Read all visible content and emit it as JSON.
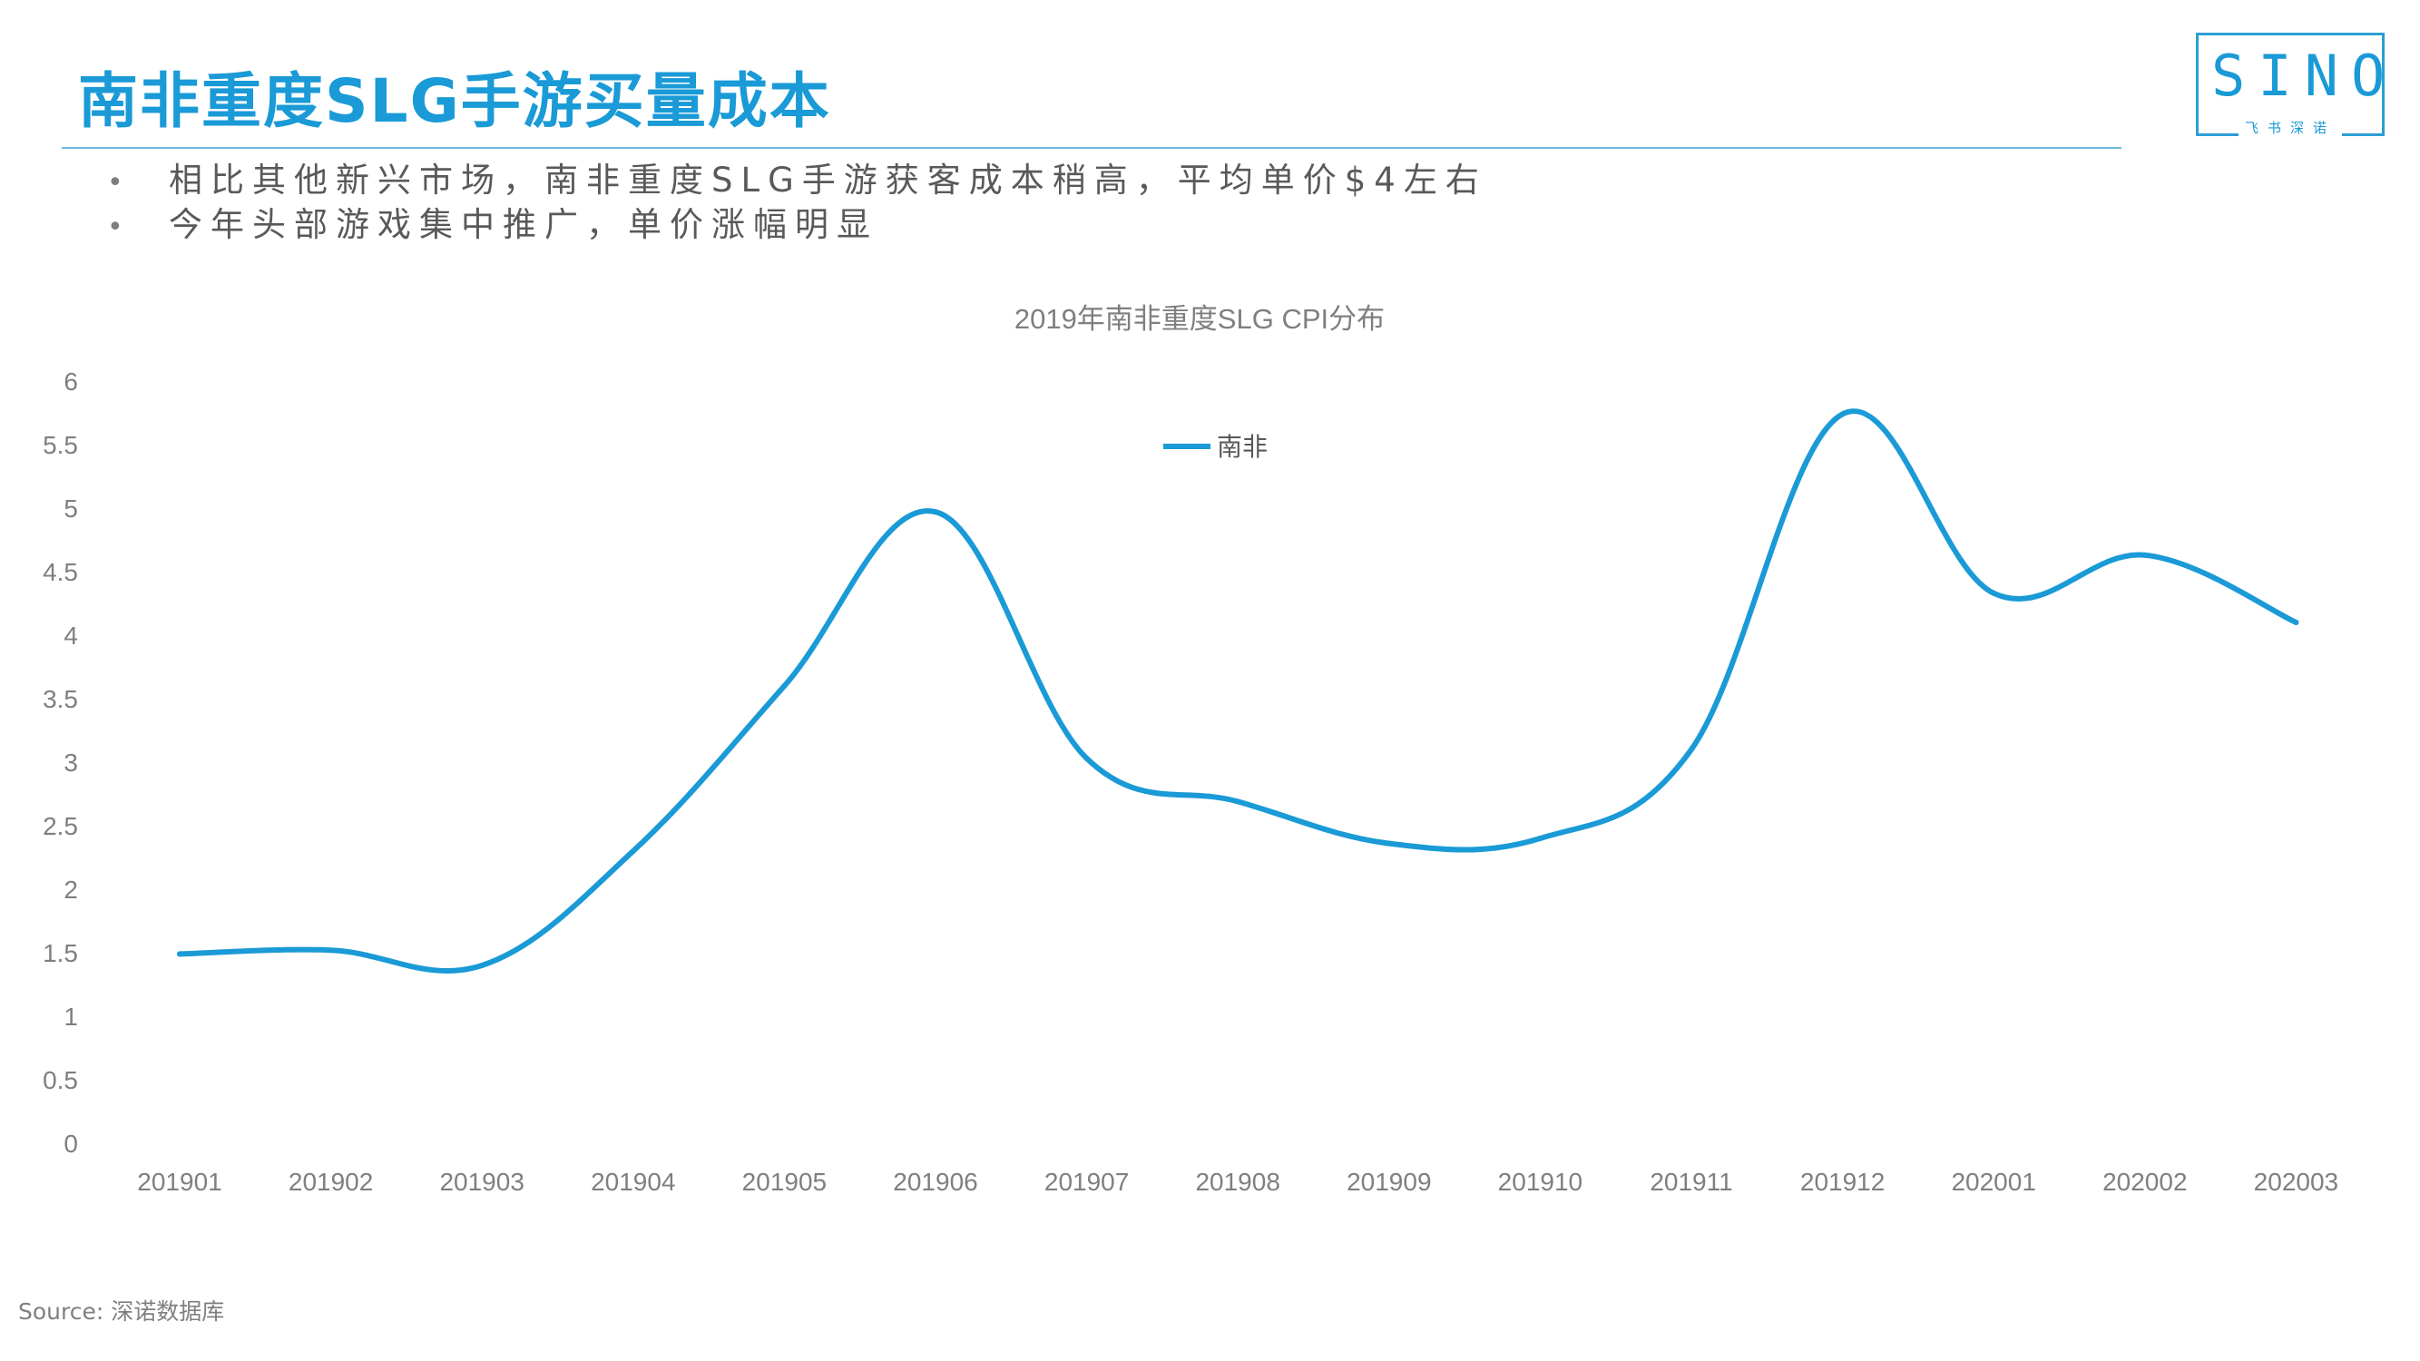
{
  "page": {
    "title": "南非重度SLG手游买量成本",
    "bullets": [
      "相比其他新兴市场，南非重度SLG手游获客成本稍高，平均单价$4左右",
      "今年头部游戏集中推广，单价涨幅明显"
    ],
    "bullet_symbol": "•",
    "source": "Source: 深诺数据库"
  },
  "logo": {
    "text": "SINO",
    "subtitle": "飞书深诺"
  },
  "colors": {
    "title": "#1a9ad6",
    "series_line": "#1a9ad6",
    "text": "#595959",
    "axis_label": "#7f7f7f"
  },
  "chart_data": {
    "type": "line",
    "title": "2019年南非重度SLG CPI分布",
    "categories": [
      "201901",
      "201902",
      "201903",
      "201904",
      "201905",
      "201906",
      "201907",
      "201908",
      "201909",
      "201910",
      "201911",
      "201912",
      "202001",
      "202002",
      "202003"
    ],
    "series": [
      {
        "name": "南非",
        "values": [
          1.49,
          1.52,
          1.4,
          2.3,
          3.6,
          4.97,
          3.03,
          2.69,
          2.36,
          2.4,
          3.1,
          5.74,
          4.33,
          4.63,
          4.1
        ]
      }
    ],
    "yticks": [
      "0",
      "0.5",
      "1",
      "1.5",
      "2",
      "2.5",
      "3",
      "3.5",
      "4",
      "4.5",
      "5",
      "5.5",
      "6"
    ],
    "ylim": [
      0,
      6
    ],
    "xlabel": "",
    "ylabel": "",
    "grid": false,
    "legend": "top-center",
    "smooth": true
  }
}
